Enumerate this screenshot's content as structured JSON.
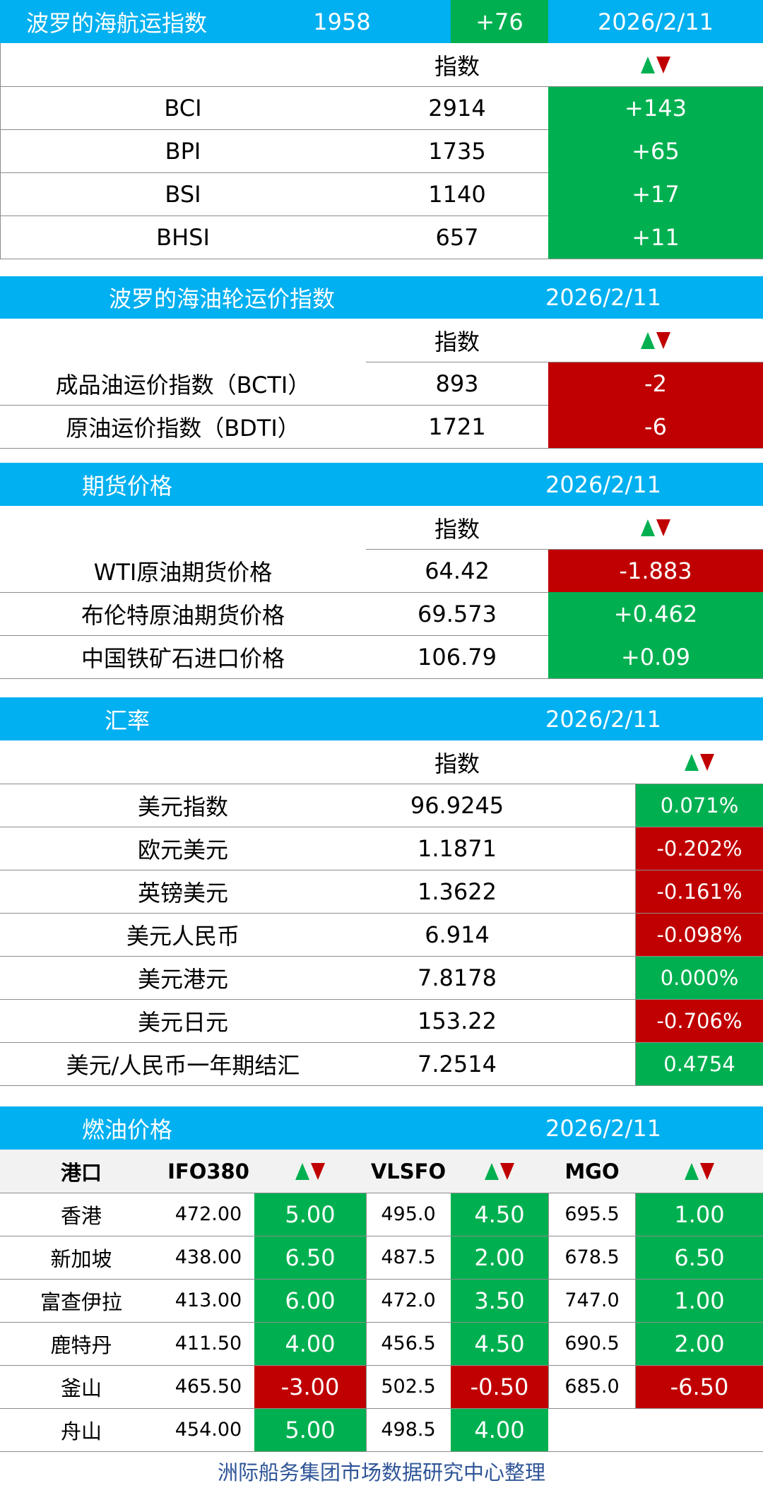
{
  "bdi": {
    "title": "波罗的海航运指数",
    "value": "1958",
    "change": "+76",
    "date": "2026/2/11",
    "header_index": "指数",
    "rows": [
      {
        "name": "BCI",
        "value": "2914",
        "change": "+143"
      },
      {
        "name": "BPI",
        "value": "1735",
        "change": "+65"
      },
      {
        "name": "BSI",
        "value": "1140",
        "change": "+17"
      },
      {
        "name": "BHSI",
        "value": "657",
        "change": "+11"
      }
    ]
  },
  "tanker": {
    "title": "波罗的海油轮运价指数",
    "date": "2026/2/11",
    "header_index": "指数",
    "rows": [
      {
        "name": "成品油运价指数（BCTI）",
        "value": "893",
        "change": "-2"
      },
      {
        "name": "原油运价指数（BDTI）",
        "value": "1721",
        "change": "-6"
      }
    ]
  },
  "futures": {
    "title": "期货价格",
    "date": "2026/2/11",
    "header_index": "指数",
    "rows": [
      {
        "name": "WTI原油期货价格",
        "value": "64.42",
        "change": "-1.883"
      },
      {
        "name": "布伦特原油期货价格",
        "value": "69.573",
        "change": "+0.462"
      },
      {
        "name": "中国铁矿石进口价格",
        "value": "106.79",
        "change": "+0.09"
      }
    ]
  },
  "fx": {
    "title": "汇率",
    "date": "2026/2/11",
    "header_index": "指数",
    "rows": [
      {
        "name": "美元指数",
        "value": "96.9245",
        "change": "0.071%"
      },
      {
        "name": "欧元美元",
        "value": "1.1871",
        "change": "-0.202%"
      },
      {
        "name": "英镑美元",
        "value": "1.3622",
        "change": "-0.161%"
      },
      {
        "name": "美元人民币",
        "value": "6.914",
        "change": "-0.098%"
      },
      {
        "name": "美元港元",
        "value": "7.8178",
        "change": "0.000%"
      },
      {
        "name": "美元日元",
        "value": "153.22",
        "change": "-0.706%"
      },
      {
        "name": "美元/人民币一年期结汇",
        "value": "7.2514",
        "change": "0.4754"
      }
    ]
  },
  "fuel": {
    "title": "燃油价格",
    "date": "2026/2/11",
    "headers": {
      "port": "港口",
      "ifo": "IFO380",
      "vlsfo": "VLSFO",
      "mgo": "MGO"
    },
    "rows": [
      {
        "port": "香港",
        "ifo": "472.00",
        "ifo_chg": "5.00",
        "vlsfo": "495.0",
        "vlsfo_chg": "4.50",
        "mgo": "695.5",
        "mgo_chg": "1.00"
      },
      {
        "port": "新加坡",
        "ifo": "438.00",
        "ifo_chg": "6.50",
        "vlsfo": "487.5",
        "vlsfo_chg": "2.00",
        "mgo": "678.5",
        "mgo_chg": "6.50"
      },
      {
        "port": "富查伊拉",
        "ifo": "413.00",
        "ifo_chg": "6.00",
        "vlsfo": "472.0",
        "vlsfo_chg": "3.50",
        "mgo": "747.0",
        "mgo_chg": "1.00"
      },
      {
        "port": "鹿特丹",
        "ifo": "411.50",
        "ifo_chg": "4.00",
        "vlsfo": "456.5",
        "vlsfo_chg": "4.50",
        "mgo": "690.5",
        "mgo_chg": "2.00"
      },
      {
        "port": "釜山",
        "ifo": "465.50",
        "ifo_chg": "-3.00",
        "vlsfo": "502.5",
        "vlsfo_chg": "-0.50",
        "mgo": "685.0",
        "mgo_chg": "-6.50"
      },
      {
        "port": "舟山",
        "ifo": "454.00",
        "ifo_chg": "5.00",
        "vlsfo": "498.5",
        "vlsfo_chg": "4.00",
        "mgo": "",
        "mgo_chg": ""
      }
    ]
  },
  "footer": "洲际船务集团市场数据研究中心整理",
  "colors": {
    "header_blue": "#00b0f0",
    "up_green": "#00b050",
    "down_red": "#c00000",
    "footer_text": "#2f5597"
  },
  "icons": {
    "change_indicator": "up-down-triangles-icon"
  }
}
